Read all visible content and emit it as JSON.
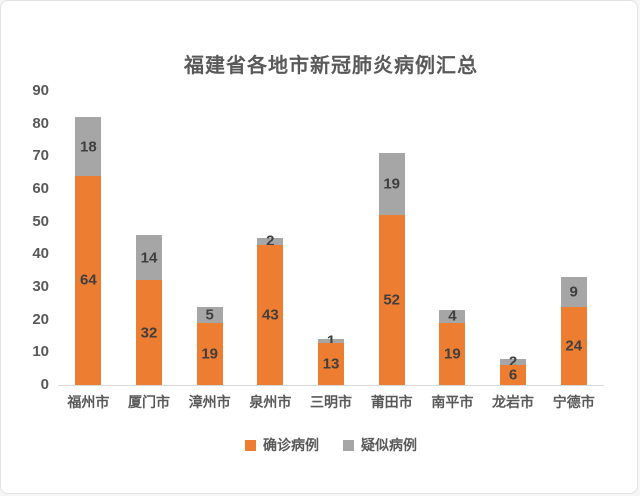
{
  "title": "福建省各地市新冠肺炎病例汇总",
  "colors": {
    "confirmed": "#ED7D31",
    "suspected": "#A6A6A6",
    "title_text": "#595959",
    "axis_text": "#595959",
    "value_label_text": "#3F3F3F",
    "axis_line": "#D9D9D9",
    "card_border": "#E2E2E2",
    "background": "#FFFFFF"
  },
  "chart_data": {
    "type": "bar",
    "stacked": true,
    "title": "福建省各地市新冠肺炎病例汇总",
    "categories": [
      "福州市",
      "厦门市",
      "漳州市",
      "泉州市",
      "三明市",
      "莆田市",
      "南平市",
      "龙岩市",
      "宁德市"
    ],
    "series": [
      {
        "name": "确诊病例",
        "color": "#ED7D31",
        "values": [
          64,
          32,
          19,
          43,
          13,
          52,
          19,
          6,
          24
        ]
      },
      {
        "name": "疑似病例",
        "color": "#A6A6A6",
        "values": [
          18,
          14,
          5,
          2,
          1,
          19,
          4,
          2,
          9
        ]
      }
    ],
    "totals": [
      82,
      46,
      24,
      45,
      14,
      71,
      23,
      8,
      33
    ],
    "xlabel": "",
    "ylabel": "",
    "ylim": [
      0,
      90
    ],
    "ytick_step": 10,
    "yticks": [
      0,
      10,
      20,
      30,
      40,
      50,
      60,
      70,
      80,
      90
    ],
    "grid": false,
    "data_labels": true,
    "legend_position": "bottom"
  },
  "legend": {
    "items": [
      {
        "label": "确诊病例",
        "color": "#ED7D31"
      },
      {
        "label": "疑似病例",
        "color": "#A6A6A6"
      }
    ]
  }
}
